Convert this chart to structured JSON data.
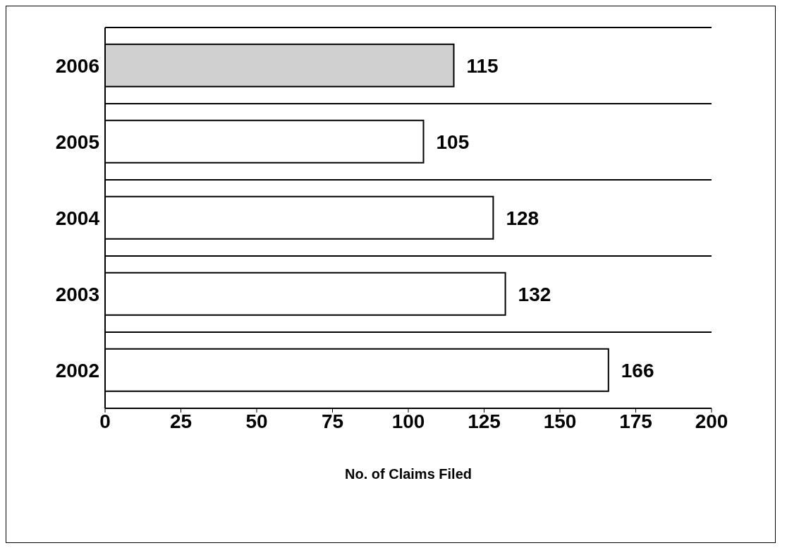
{
  "chart_data": {
    "type": "bar",
    "orientation": "horizontal",
    "xlabel": "No. of Claims Filed",
    "categories": [
      "2006",
      "2005",
      "2004",
      "2003",
      "2002"
    ],
    "values": [
      115,
      105,
      128,
      132,
      166
    ],
    "colors": [
      "#d0d0d0",
      "#ffffff",
      "#ffffff",
      "#ffffff",
      "#ffffff"
    ],
    "xlim": [
      0,
      200
    ],
    "xticks": [
      0,
      25,
      50,
      75,
      100,
      125,
      150,
      175,
      200
    ],
    "data_labels": true,
    "grid": "y"
  }
}
